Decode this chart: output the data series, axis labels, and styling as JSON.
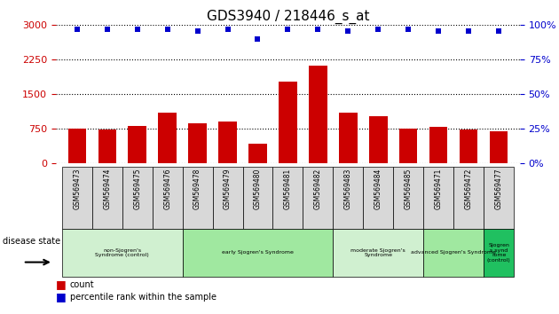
{
  "title": "GDS3940 / 218446_s_at",
  "samples": [
    "GSM569473",
    "GSM569474",
    "GSM569475",
    "GSM569476",
    "GSM569478",
    "GSM569479",
    "GSM569480",
    "GSM569481",
    "GSM569482",
    "GSM569483",
    "GSM569484",
    "GSM569485",
    "GSM569471",
    "GSM569472",
    "GSM569477"
  ],
  "counts": [
    750,
    740,
    820,
    1100,
    870,
    900,
    430,
    1780,
    2120,
    1100,
    1020,
    760,
    800,
    740,
    690
  ],
  "percentiles": [
    97,
    97,
    97,
    97,
    96,
    97,
    90,
    97,
    97,
    96,
    97,
    97,
    96,
    96,
    96
  ],
  "ylim_left": [
    0,
    3000
  ],
  "ylim_right": [
    0,
    100
  ],
  "yticks_left": [
    0,
    750,
    1500,
    2250,
    3000
  ],
  "yticks_right": [
    0,
    25,
    50,
    75,
    100
  ],
  "groups": [
    {
      "label": "non-Sjogren's\nSyndrome (control)",
      "start": 0,
      "end": 4,
      "color": "#d0f0d0"
    },
    {
      "label": "early Sjogren's Syndrome",
      "start": 4,
      "end": 9,
      "color": "#a0e8a0"
    },
    {
      "label": "moderate Sjogren's\nSyndrome",
      "start": 9,
      "end": 12,
      "color": "#d0f0d0"
    },
    {
      "label": "advanced Sjogren's Syndrome",
      "start": 12,
      "end": 14,
      "color": "#a0e8a0"
    },
    {
      "label": "Sjogren\ns synd\nrome\n(control)",
      "start": 14,
      "end": 15,
      "color": "#20c060"
    }
  ],
  "bar_color": "#cc0000",
  "dot_color": "#0000cc",
  "left_axis_color": "#cc0000",
  "right_axis_color": "#0000cc",
  "legend_count_color": "#cc0000",
  "legend_pct_color": "#0000cc"
}
